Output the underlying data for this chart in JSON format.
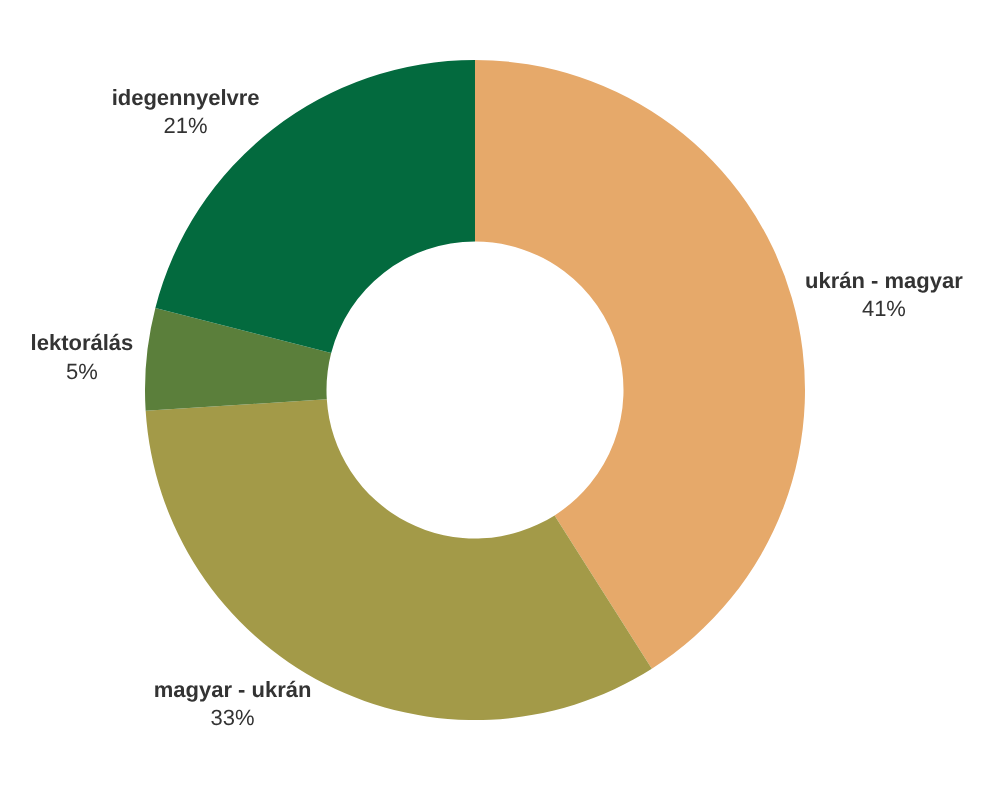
{
  "chart_data": {
    "type": "donut",
    "categories": [
      "ukrán - magyar",
      "magyar - ukrán",
      "lektorálás",
      "idegennyelvre"
    ],
    "values": [
      41,
      33,
      5,
      21
    ],
    "colors": [
      "#e6a96a",
      "#a39a48",
      "#5b7f3b",
      "#036a3e"
    ],
    "value_labels": [
      "41%",
      "33%",
      "5%",
      "21%"
    ],
    "legend": false
  }
}
